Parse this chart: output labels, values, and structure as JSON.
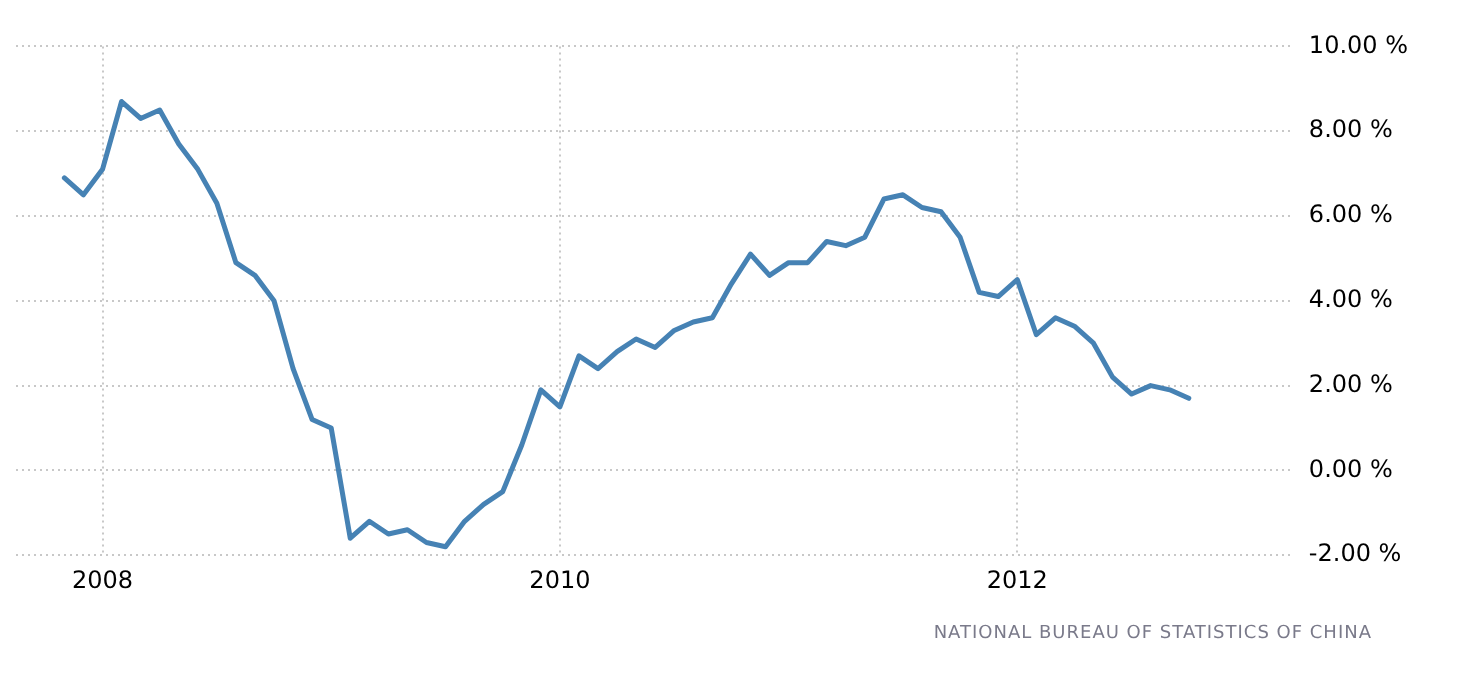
{
  "chart_data": {
    "type": "line",
    "x": [
      "2007-11",
      "2007-12",
      "2008-01",
      "2008-02",
      "2008-03",
      "2008-04",
      "2008-05",
      "2008-06",
      "2008-07",
      "2008-08",
      "2008-09",
      "2008-10",
      "2008-11",
      "2008-12",
      "2009-01",
      "2009-02",
      "2009-03",
      "2009-04",
      "2009-05",
      "2009-06",
      "2009-07",
      "2009-08",
      "2009-09",
      "2009-10",
      "2009-11",
      "2009-12",
      "2010-01",
      "2010-02",
      "2010-03",
      "2010-04",
      "2010-05",
      "2010-06",
      "2010-07",
      "2010-08",
      "2010-09",
      "2010-10",
      "2010-11",
      "2010-12",
      "2011-01",
      "2011-02",
      "2011-03",
      "2011-04",
      "2011-05",
      "2011-06",
      "2011-07",
      "2011-08",
      "2011-09",
      "2011-10",
      "2011-11",
      "2011-12",
      "2012-01",
      "2012-02",
      "2012-03",
      "2012-04",
      "2012-05",
      "2012-06",
      "2012-07",
      "2012-08",
      "2012-09",
      "2012-10"
    ],
    "series": [
      {
        "color": "#4682b4",
        "values": [
          6.9,
          6.5,
          7.1,
          8.7,
          8.3,
          8.5,
          7.7,
          7.1,
          6.3,
          4.9,
          4.6,
          4.0,
          2.4,
          1.2,
          1.0,
          -1.6,
          -1.2,
          -1.5,
          -1.4,
          -1.7,
          -1.8,
          -1.2,
          -0.8,
          -0.5,
          0.6,
          1.9,
          1.5,
          2.7,
          2.4,
          2.8,
          3.1,
          2.9,
          3.3,
          3.5,
          3.6,
          4.4,
          5.1,
          4.6,
          4.9,
          4.9,
          5.4,
          5.3,
          5.5,
          6.4,
          6.5,
          6.2,
          6.1,
          5.5,
          4.2,
          4.1,
          4.5,
          3.2,
          3.6,
          3.4,
          3.0,
          2.2,
          1.8,
          2.0,
          1.9,
          1.7
        ]
      }
    ],
    "xlim": [
      "2007-08-15",
      "2013-03-15"
    ],
    "xticks": [
      "2008",
      "2010",
      "2012"
    ],
    "ylim": [
      -2,
      10
    ],
    "yticks": [
      {
        "value": -2,
        "label": "-2.00 %"
      },
      {
        "value": 0,
        "label": "0.00 %"
      },
      {
        "value": 2,
        "label": "2.00 %"
      },
      {
        "value": 4,
        "label": "4.00 %"
      },
      {
        "value": 6,
        "label": "6.00 %"
      },
      {
        "value": 8,
        "label": "8.00 %"
      },
      {
        "value": 10,
        "label": "10.00 %"
      }
    ],
    "grid": true,
    "legend": false,
    "marker": "none",
    "line_style": "solid",
    "annotations": [
      "NATIONAL BUREAU OF STATISTICS OF CHINA"
    ]
  }
}
